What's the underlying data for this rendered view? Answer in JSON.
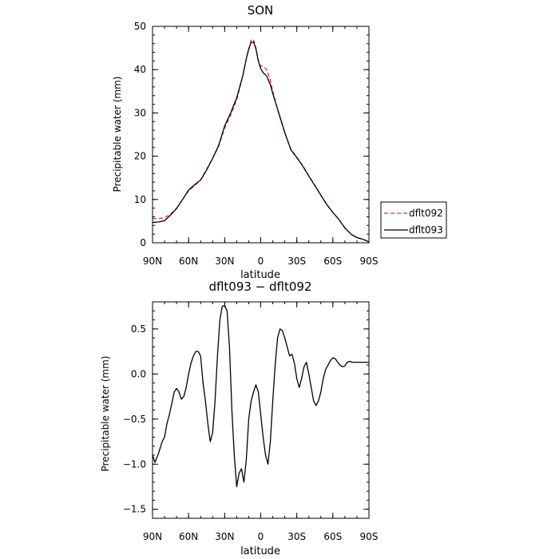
{
  "chart_data": [
    {
      "type": "line",
      "title": "SON",
      "xlabel": "latitude",
      "ylabel": "Precipitable water (mm)",
      "xlim": [
        90,
        -90
      ],
      "ylim": [
        0,
        50
      ],
      "xtick_values": [
        90,
        60,
        30,
        0,
        -30,
        -60,
        -90
      ],
      "xtick_labels": [
        "90N",
        "60N",
        "30N",
        "0",
        "30S",
        "60S",
        "90S"
      ],
      "ytick_values": [
        0,
        10,
        20,
        30,
        40,
        50
      ],
      "ytick_labels": [
        "0",
        "10",
        "20",
        "30",
        "40",
        "50"
      ],
      "legend_position": "right",
      "series": [
        {
          "name": "dflt092",
          "color": "#e0302a",
          "dash": "dashed",
          "x": [
            90,
            85,
            80,
            75,
            70,
            65,
            60,
            55,
            50,
            45,
            40,
            35,
            30,
            25,
            20,
            15,
            12,
            10,
            8,
            6,
            4,
            2,
            0,
            -2,
            -5,
            -8,
            -10,
            -15,
            -20,
            -25,
            -30,
            -35,
            -40,
            -45,
            -50,
            -55,
            -60,
            -65,
            -70,
            -75,
            -80,
            -85,
            -90
          ],
          "y": [
            5.6,
            5.6,
            5.8,
            6.6,
            8.0,
            10.0,
            12.0,
            13.2,
            14.5,
            17.0,
            19.5,
            22.3,
            26.5,
            29.5,
            33.0,
            38.5,
            42.5,
            44.5,
            46.8,
            47.0,
            45.0,
            42.0,
            40.8,
            40.8,
            40.0,
            37.5,
            35.0,
            29.8,
            25.3,
            21.7,
            19.8,
            17.8,
            15.5,
            13.3,
            11.0,
            8.8,
            7.0,
            5.4,
            3.5,
            2.0,
            1.2,
            0.8,
            0.3
          ]
        },
        {
          "name": "dflt093",
          "color": "#000000",
          "dash": "solid",
          "x": [
            90,
            85,
            80,
            75,
            70,
            65,
            60,
            55,
            50,
            45,
            40,
            35,
            30,
            25,
            20,
            15,
            12,
            10,
            8,
            6,
            4,
            2,
            0,
            -2,
            -5,
            -8,
            -10,
            -15,
            -20,
            -25,
            -30,
            -35,
            -40,
            -45,
            -50,
            -55,
            -60,
            -65,
            -70,
            -75,
            -80,
            -85,
            -90
          ],
          "y": [
            4.7,
            4.8,
            5.1,
            6.4,
            7.9,
            10.0,
            12.2,
            13.4,
            14.5,
            16.8,
            19.5,
            22.5,
            27.0,
            30.0,
            33.5,
            38.5,
            42.5,
            44.8,
            46.3,
            46.4,
            44.8,
            42.0,
            40.2,
            39.3,
            38.5,
            36.5,
            34.5,
            30.0,
            25.5,
            21.5,
            19.7,
            17.7,
            15.4,
            13.2,
            11.0,
            8.8,
            7.0,
            5.4,
            3.4,
            2.0,
            1.2,
            0.8,
            0.2
          ]
        }
      ]
    },
    {
      "type": "line",
      "title": "dflt093 − dflt092",
      "xlabel": "latitude",
      "ylabel": "Precipitable water (mm)",
      "xlim": [
        90,
        -90
      ],
      "ylim": [
        -1.6,
        0.8
      ],
      "xtick_values": [
        90,
        60,
        30,
        0,
        -30,
        -60,
        -90
      ],
      "xtick_labels": [
        "90N",
        "60N",
        "30N",
        "0",
        "30S",
        "60S",
        "90S"
      ],
      "ytick_values": [
        -1.5,
        -1.0,
        -0.5,
        0.0,
        0.5
      ],
      "ytick_labels": [
        "−1.5",
        "−1.0",
        "−0.5",
        "0.0",
        "0.5"
      ],
      "series": [
        {
          "color": "#000000",
          "x": [
            90,
            88,
            85,
            82,
            80,
            78,
            76,
            74,
            72,
            70,
            68,
            66,
            64,
            62,
            60,
            58,
            56,
            54,
            52,
            50,
            48,
            46,
            44,
            42,
            40,
            38,
            36,
            34,
            32,
            30,
            28,
            26,
            24,
            22,
            20,
            18,
            16,
            14,
            12,
            10,
            8,
            6,
            4,
            2,
            0,
            -2,
            -4,
            -6,
            -8,
            -10,
            -12,
            -14,
            -16,
            -18,
            -20,
            -22,
            -24,
            -26,
            -28,
            -30,
            -32,
            -34,
            -36,
            -38,
            -40,
            -42,
            -44,
            -46,
            -48,
            -50,
            -52,
            -54,
            -56,
            -58,
            -60,
            -62,
            -64,
            -66,
            -68,
            -70,
            -72,
            -74,
            -76,
            -78,
            -80,
            -82,
            -84,
            -86,
            -88,
            -90
          ],
          "y": [
            -0.9,
            -0.98,
            -0.88,
            -0.75,
            -0.7,
            -0.55,
            -0.45,
            -0.33,
            -0.2,
            -0.16,
            -0.2,
            -0.28,
            -0.25,
            -0.15,
            0.0,
            0.12,
            0.2,
            0.25,
            0.25,
            0.2,
            -0.1,
            -0.3,
            -0.55,
            -0.75,
            -0.65,
            -0.3,
            0.2,
            0.6,
            0.75,
            0.76,
            0.7,
            0.3,
            -0.4,
            -0.9,
            -1.25,
            -1.1,
            -1.05,
            -1.2,
            -0.95,
            -0.5,
            -0.3,
            -0.2,
            -0.12,
            -0.2,
            -0.45,
            -0.7,
            -0.9,
            -1.0,
            -0.75,
            -0.3,
            0.1,
            0.4,
            0.5,
            0.48,
            0.4,
            0.3,
            0.2,
            0.22,
            0.12,
            -0.05,
            -0.15,
            -0.05,
            0.08,
            0.13,
            0.0,
            -0.15,
            -0.3,
            -0.35,
            -0.3,
            -0.2,
            -0.05,
            0.05,
            0.1,
            0.15,
            0.18,
            0.17,
            0.13,
            0.1,
            0.08,
            0.09,
            0.13,
            0.14,
            0.13,
            0.13,
            0.13,
            0.13,
            0.13,
            0.13,
            0.13,
            0.13
          ]
        }
      ]
    }
  ]
}
